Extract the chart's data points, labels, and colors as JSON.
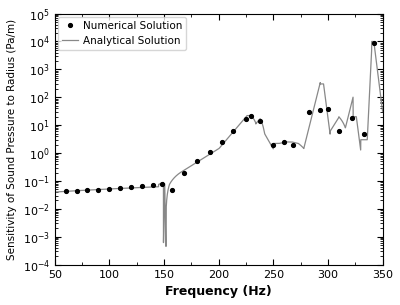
{
  "title": "",
  "xlabel": "Frequency (Hz)",
  "ylabel": "Sensitivity of Sound Pressure to Radius (Pa/m)",
  "xlim": [
    50,
    350
  ],
  "ylim": [
    0.0001,
    100000.0
  ],
  "x_ticks": [
    50,
    100,
    150,
    200,
    250,
    300,
    350
  ],
  "legend": [
    "Numerical Solution",
    "Analytical Solution"
  ],
  "line_color": "#888888",
  "dot_color": "#000000",
  "background_color": "#ffffff",
  "numerical_x": [
    60,
    70,
    80,
    90,
    100,
    110,
    120,
    130,
    140,
    148,
    157,
    168,
    180,
    192,
    203,
    213,
    225,
    230,
    238,
    250,
    260,
    268,
    283,
    293,
    300,
    310,
    322,
    333,
    342
  ],
  "numerical_y": [
    0.042,
    0.043,
    0.046,
    0.049,
    0.053,
    0.057,
    0.062,
    0.067,
    0.074,
    0.075,
    0.048,
    0.2,
    0.5,
    1.1,
    2.5,
    6.0,
    16.0,
    22.0,
    14.0,
    2.0,
    2.5,
    2.0,
    30.0,
    35.0,
    38.0,
    6.0,
    18.0,
    5.0,
    9000
  ]
}
